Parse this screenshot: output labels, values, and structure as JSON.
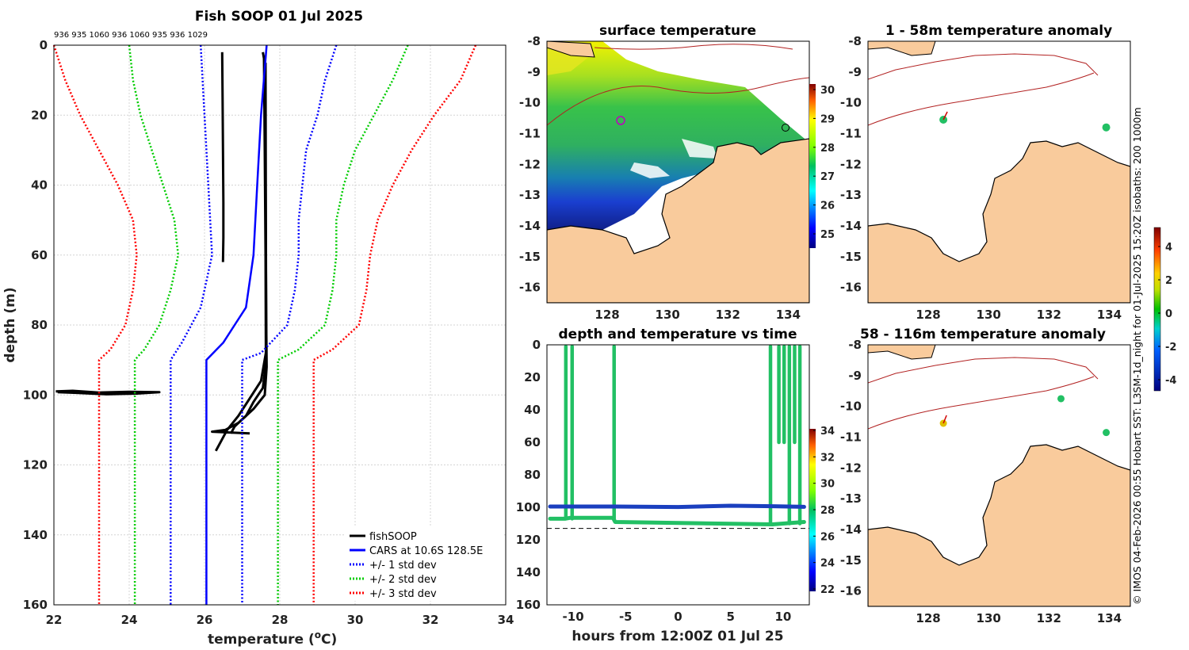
{
  "chart_data": [
    {
      "type": "line",
      "title": "Fish SOOP 01 Jul 2025",
      "top_labels": "936 935 1060 936 1060 935 936 1029",
      "xlabel": "temperature (",
      "xlabel_sup": "o",
      "xlabel_end": "C)",
      "ylabel": "depth (m)",
      "xlim": [
        22,
        34
      ],
      "ylim": [
        0,
        160
      ],
      "xticks": [
        "22",
        "24",
        "26",
        "28",
        "30",
        "32",
        "34"
      ],
      "yticks": [
        "0",
        "20",
        "40",
        "60",
        "80",
        "100",
        "120",
        "140",
        "160"
      ],
      "legend": [
        "fishSOOP",
        "CARS at 10.6S 128.5E",
        "+/- 1 std dev",
        "+/- 2 std dev",
        "+/- 3 std dev"
      ],
      "legend_position": "bottom-right",
      "series": [
        {
          "name": "fishSOOP cast 1",
          "color": "#000000",
          "points": [
            [
              26.47,
              2
            ],
            [
              26.48,
              15
            ],
            [
              26.49,
              30
            ],
            [
              26.5,
              45
            ],
            [
              26.5,
              55
            ],
            [
              26.49,
              62
            ]
          ]
        },
        {
          "name": "fishSOOP cast 2",
          "color": "#000000",
          "points": [
            [
              27.55,
              2
            ],
            [
              27.6,
              5
            ],
            [
              27.6,
              20
            ],
            [
              27.62,
              40
            ],
            [
              27.63,
              60
            ],
            [
              27.64,
              80
            ],
            [
              27.65,
              92
            ],
            [
              27.6,
              100
            ],
            [
              27.3,
              104
            ],
            [
              27.0,
              107
            ],
            [
              26.8,
              109
            ],
            [
              26.7,
              111
            ]
          ]
        },
        {
          "name": "fishSOOP cast 3",
          "color": "#000000",
          "points": [
            [
              27.58,
              3
            ],
            [
              27.6,
              30
            ],
            [
              27.62,
              60
            ],
            [
              27.63,
              88
            ],
            [
              27.5,
              96
            ],
            [
              27.2,
              101
            ],
            [
              26.9,
              106
            ],
            [
              26.6,
              110
            ],
            [
              26.5,
              112
            ],
            [
              26.3,
              116
            ]
          ]
        },
        {
          "name": "fishSOOP cast 4",
          "color": "#000000",
          "points": [
            [
              27.62,
              5
            ],
            [
              27.63,
              50
            ],
            [
              27.64,
              90
            ],
            [
              27.55,
              98
            ],
            [
              27.3,
              102
            ],
            [
              27.1,
              106
            ],
            [
              26.9,
              108
            ],
            [
              26.55,
              110
            ],
            [
              26.2,
              110.5
            ],
            [
              27.2,
              111
            ]
          ]
        },
        {
          "name": "fishSOOP loop",
          "color": "#000000",
          "points": [
            [
              22.05,
              99
            ],
            [
              22.5,
              98.8
            ],
            [
              23.2,
              99.3
            ],
            [
              24,
              99.1
            ],
            [
              24.8,
              99.2
            ],
            [
              24.2,
              99.6
            ],
            [
              23.4,
              99.8
            ],
            [
              22.6,
              99.4
            ],
            [
              22.1,
              99.2
            ]
          ]
        },
        {
          "name": "CARS",
          "color": "#0000ff",
          "points": [
            [
              27.65,
              0
            ],
            [
              27.5,
              20
            ],
            [
              27.4,
              40
            ],
            [
              27.3,
              60
            ],
            [
              27.1,
              75
            ],
            [
              26.8,
              80
            ],
            [
              26.5,
              85
            ],
            [
              26.05,
              90
            ],
            [
              26.05,
              160
            ]
          ]
        },
        {
          "name": "-1 std",
          "color": "#0000ff",
          "dash": true,
          "points": [
            [
              25.9,
              0
            ],
            [
              26.0,
              20
            ],
            [
              26.1,
              40
            ],
            [
              26.2,
              60
            ],
            [
              25.9,
              75
            ],
            [
              25.4,
              85
            ],
            [
              25.1,
              90
            ],
            [
              25.1,
              160
            ]
          ]
        },
        {
          "name": "+1 std",
          "color": "#0000ff",
          "dash": true,
          "points": [
            [
              29.5,
              0
            ],
            [
              29.2,
              10
            ],
            [
              29.0,
              20
            ],
            [
              28.7,
              30
            ],
            [
              28.6,
              40
            ],
            [
              28.5,
              50
            ],
            [
              28.5,
              60
            ],
            [
              28.4,
              70
            ],
            [
              28.2,
              80
            ],
            [
              27.5,
              88
            ],
            [
              27.0,
              90
            ],
            [
              27.0,
              160
            ]
          ]
        },
        {
          "name": "-2 std",
          "color": "#00cc00",
          "dash": true,
          "points": [
            [
              24.0,
              0
            ],
            [
              24.1,
              10
            ],
            [
              24.3,
              20
            ],
            [
              24.6,
              30
            ],
            [
              24.9,
              40
            ],
            [
              25.2,
              50
            ],
            [
              25.3,
              60
            ],
            [
              25.1,
              70
            ],
            [
              24.8,
              80
            ],
            [
              24.4,
              87
            ],
            [
              24.15,
              90
            ],
            [
              24.15,
              160
            ]
          ]
        },
        {
          "name": "+2 std",
          "color": "#00cc00",
          "dash": true,
          "points": [
            [
              31.4,
              0
            ],
            [
              31.0,
              10
            ],
            [
              30.5,
              20
            ],
            [
              30.0,
              30
            ],
            [
              29.7,
              40
            ],
            [
              29.5,
              50
            ],
            [
              29.5,
              60
            ],
            [
              29.4,
              70
            ],
            [
              29.2,
              80
            ],
            [
              28.5,
              87
            ],
            [
              27.95,
              90
            ],
            [
              27.95,
              160
            ]
          ]
        },
        {
          "name": "-3 std",
          "color": "#ff0000",
          "dash": true,
          "points": [
            [
              22.0,
              0
            ],
            [
              22.3,
              10
            ],
            [
              22.7,
              20
            ],
            [
              23.2,
              30
            ],
            [
              23.7,
              40
            ],
            [
              24.1,
              50
            ],
            [
              24.2,
              60
            ],
            [
              24.1,
              70
            ],
            [
              23.9,
              80
            ],
            [
              23.5,
              87
            ],
            [
              23.2,
              90
            ],
            [
              23.2,
              160
            ]
          ]
        },
        {
          "name": "+3 std",
          "color": "#ff0000",
          "dash": true,
          "points": [
            [
              33.2,
              0
            ],
            [
              32.8,
              10
            ],
            [
              32.1,
              20
            ],
            [
              31.5,
              30
            ],
            [
              31.0,
              40
            ],
            [
              30.6,
              50
            ],
            [
              30.4,
              60
            ],
            [
              30.3,
              70
            ],
            [
              30.1,
              80
            ],
            [
              29.4,
              87
            ],
            [
              28.9,
              90
            ],
            [
              28.9,
              160
            ]
          ]
        }
      ]
    },
    {
      "type": "heatmap",
      "title": "surface temperature",
      "xticks": [
        "128",
        "130",
        "132",
        "134"
      ],
      "yticks": [
        "-8",
        "-9",
        "-10",
        "-11",
        "-12",
        "-13",
        "-14",
        "-15",
        "-16"
      ],
      "colorbar_ticks": [
        "30",
        "29",
        "28",
        "27",
        "26",
        "25"
      ]
    },
    {
      "type": "scatter",
      "title": "depth and temperature vs time",
      "xlabel": "hours from 12:00Z 01 Jul 25",
      "xlim": [
        -12.5,
        12.5
      ],
      "ylim": [
        0,
        160
      ],
      "xticks": [
        "-10",
        "-5",
        "0",
        "5",
        "10"
      ],
      "yticks": [
        "0",
        "20",
        "40",
        "60",
        "80",
        "100",
        "120",
        "140",
        "160"
      ],
      "colorbar_ticks": [
        "34",
        "32",
        "30",
        "28",
        "26",
        "24",
        "22"
      ],
      "bottom_depth": 113,
      "tracks": [
        {
          "name": "green track",
          "color": "#22c064",
          "points": [
            [
              -12.2,
              107
            ],
            [
              -11,
              107
            ],
            [
              -10.8,
              107
            ],
            [
              -10.3,
              106.5
            ],
            [
              -6.2,
              106.5
            ],
            [
              -6.0,
              109
            ],
            [
              9,
              110.5
            ],
            [
              12,
              109
            ]
          ]
        },
        {
          "name": "blue track",
          "color": "#1a3fbf",
          "points": [
            [
              -12.2,
              99.5
            ],
            [
              -6,
              99.5
            ],
            [
              0,
              99.8
            ],
            [
              5,
              99
            ],
            [
              9,
              99.3
            ],
            [
              12,
              99.7
            ]
          ]
        }
      ],
      "verticals": [
        [
          -10.7,
          1,
          107
        ],
        [
          -10.1,
          1,
          107
        ],
        [
          -6.1,
          1,
          107
        ],
        [
          8.8,
          1,
          110
        ],
        [
          9.6,
          1,
          60
        ],
        [
          10.1,
          1,
          60
        ],
        [
          10.6,
          1,
          110
        ],
        [
          11.1,
          1,
          60
        ],
        [
          11.6,
          1,
          110
        ]
      ]
    },
    {
      "type": "scatter",
      "title": "1 - 58m temperature anomaly",
      "xticks": [
        "128",
        "130",
        "132",
        "134"
      ],
      "yticks": [
        "-8",
        "-9",
        "-10",
        "-11",
        "-12",
        "-13",
        "-14",
        "-15",
        "-16"
      ],
      "points": [
        [
          128.5,
          -10.55
        ],
        [
          133.9,
          -10.8
        ]
      ]
    },
    {
      "type": "scatter",
      "title": "58 - 116m temperature anomaly",
      "xticks": [
        "128",
        "130",
        "132",
        "134"
      ],
      "yticks": [
        "-8",
        "-9",
        "-10",
        "-11",
        "-12",
        "-13",
        "-14",
        "-15",
        "-16"
      ],
      "points": [
        [
          128.5,
          -10.55
        ],
        [
          132.4,
          -9.75
        ],
        [
          133.9,
          -10.85
        ]
      ]
    }
  ],
  "anomaly_colorbar_ticks": [
    "4",
    "2",
    "0",
    "-2",
    "-4"
  ],
  "side_caption": "© IMOS 04-Feb-2026 00:55 Hobart SST: L3SM-1d_night for 01-Jul-2025 15:20Z isobaths: 200  1000m"
}
